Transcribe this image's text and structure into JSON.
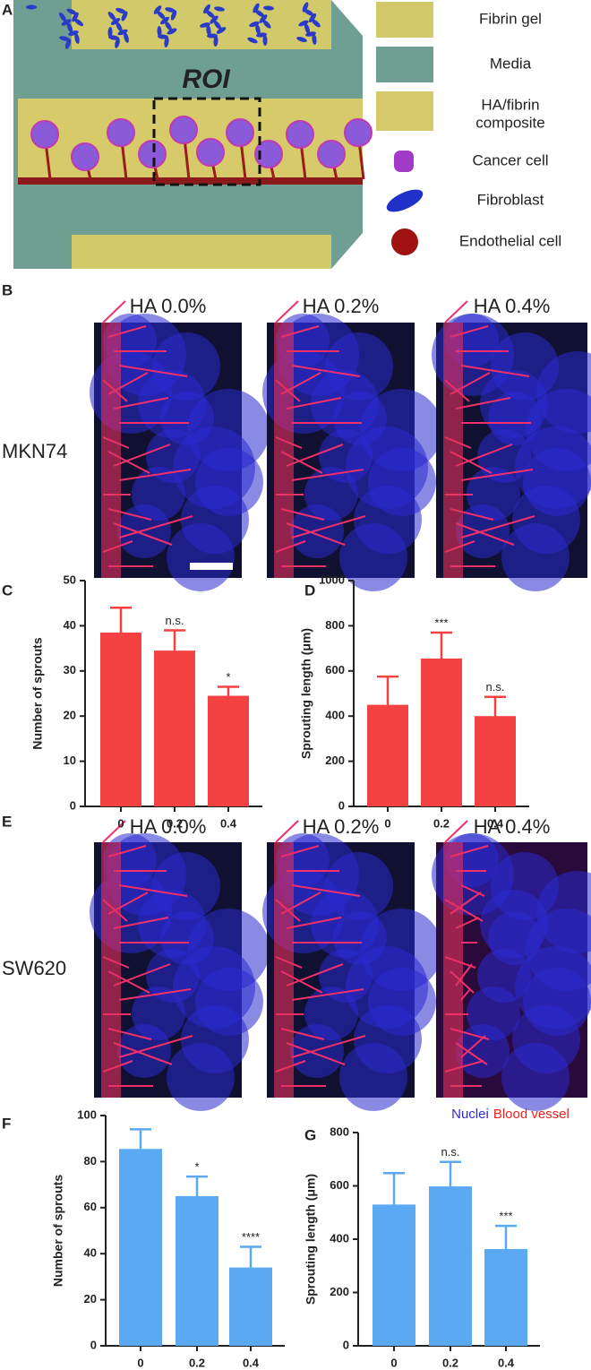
{
  "panel_labels": [
    "A",
    "B",
    "C",
    "D",
    "E",
    "F",
    "G"
  ],
  "schematic": {
    "roi": "ROI",
    "legend": [
      {
        "lines": [
          "Fibrin gel"
        ]
      },
      {
        "lines": [
          "Media"
        ]
      },
      {
        "lines": [
          "HA/fibrin",
          "composite"
        ]
      },
      {
        "lines": [
          "Cancer cell"
        ]
      },
      {
        "lines": [
          "Fibroblast"
        ]
      },
      {
        "lines": [
          "Endothelial cell"
        ]
      }
    ]
  },
  "microscopy": {
    "row_b": {
      "cell_line": "MKN74",
      "conditions": [
        "HA 0.0%",
        "HA 0.2%",
        "HA 0.4%"
      ]
    },
    "row_e": {
      "cell_line": "SW620",
      "conditions": [
        "HA 0.0%",
        "HA 0.2%",
        "HA 0.4%"
      ]
    },
    "stain_legend": [
      {
        "text": "Nuclei",
        "color": "#2b2bd6"
      },
      {
        "text": "Blood vessel",
        "color": "#e8231f"
      }
    ]
  },
  "chart_data": [
    {
      "type": "bar",
      "y_label": "Number of sprouts",
      "categories": [
        "0",
        "0.2",
        "0.4"
      ],
      "values": [
        38.5,
        34.5,
        24.5
      ],
      "errors": [
        5.5,
        4.5,
        2
      ],
      "annotations": [
        null,
        "n.s.",
        "*"
      ],
      "color": "#f44242",
      "ylim": [
        0,
        50
      ],
      "yticks": [
        0,
        10,
        20,
        30,
        40,
        50
      ]
    },
    {
      "type": "bar",
      "y_label": "Sprouting length (μm)",
      "categories": [
        "0",
        "0.2",
        "0.4"
      ],
      "values": [
        450,
        655,
        400
      ],
      "errors": [
        125,
        115,
        85
      ],
      "annotations": [
        null,
        "***",
        "n.s."
      ],
      "color": "#f44242",
      "ylim": [
        0,
        1000
      ],
      "yticks": [
        0,
        200,
        400,
        600,
        800,
        1000
      ]
    },
    {
      "type": "bar",
      "y_label": "Number of sprouts",
      "categories": [
        "0",
        "0.2",
        "0.4"
      ],
      "values": [
        85.5,
        65,
        34
      ],
      "errors": [
        8.5,
        8.5,
        9
      ],
      "annotations": [
        null,
        "*",
        "****"
      ],
      "color": "#5aa9f2",
      "ylim": [
        0,
        100
      ],
      "yticks": [
        0,
        20,
        40,
        60,
        80,
        100
      ]
    },
    {
      "type": "bar",
      "y_label": "Sprouting length (μm)",
      "categories": [
        "0",
        "0.2",
        "0.4"
      ],
      "values": [
        530,
        598,
        363
      ],
      "errors": [
        118,
        92,
        87
      ],
      "annotations": [
        null,
        "n.s.",
        "***"
      ],
      "color": "#5aa9f2",
      "ylim": [
        0,
        800
      ],
      "yticks": [
        0,
        200,
        400,
        600,
        800
      ]
    }
  ]
}
